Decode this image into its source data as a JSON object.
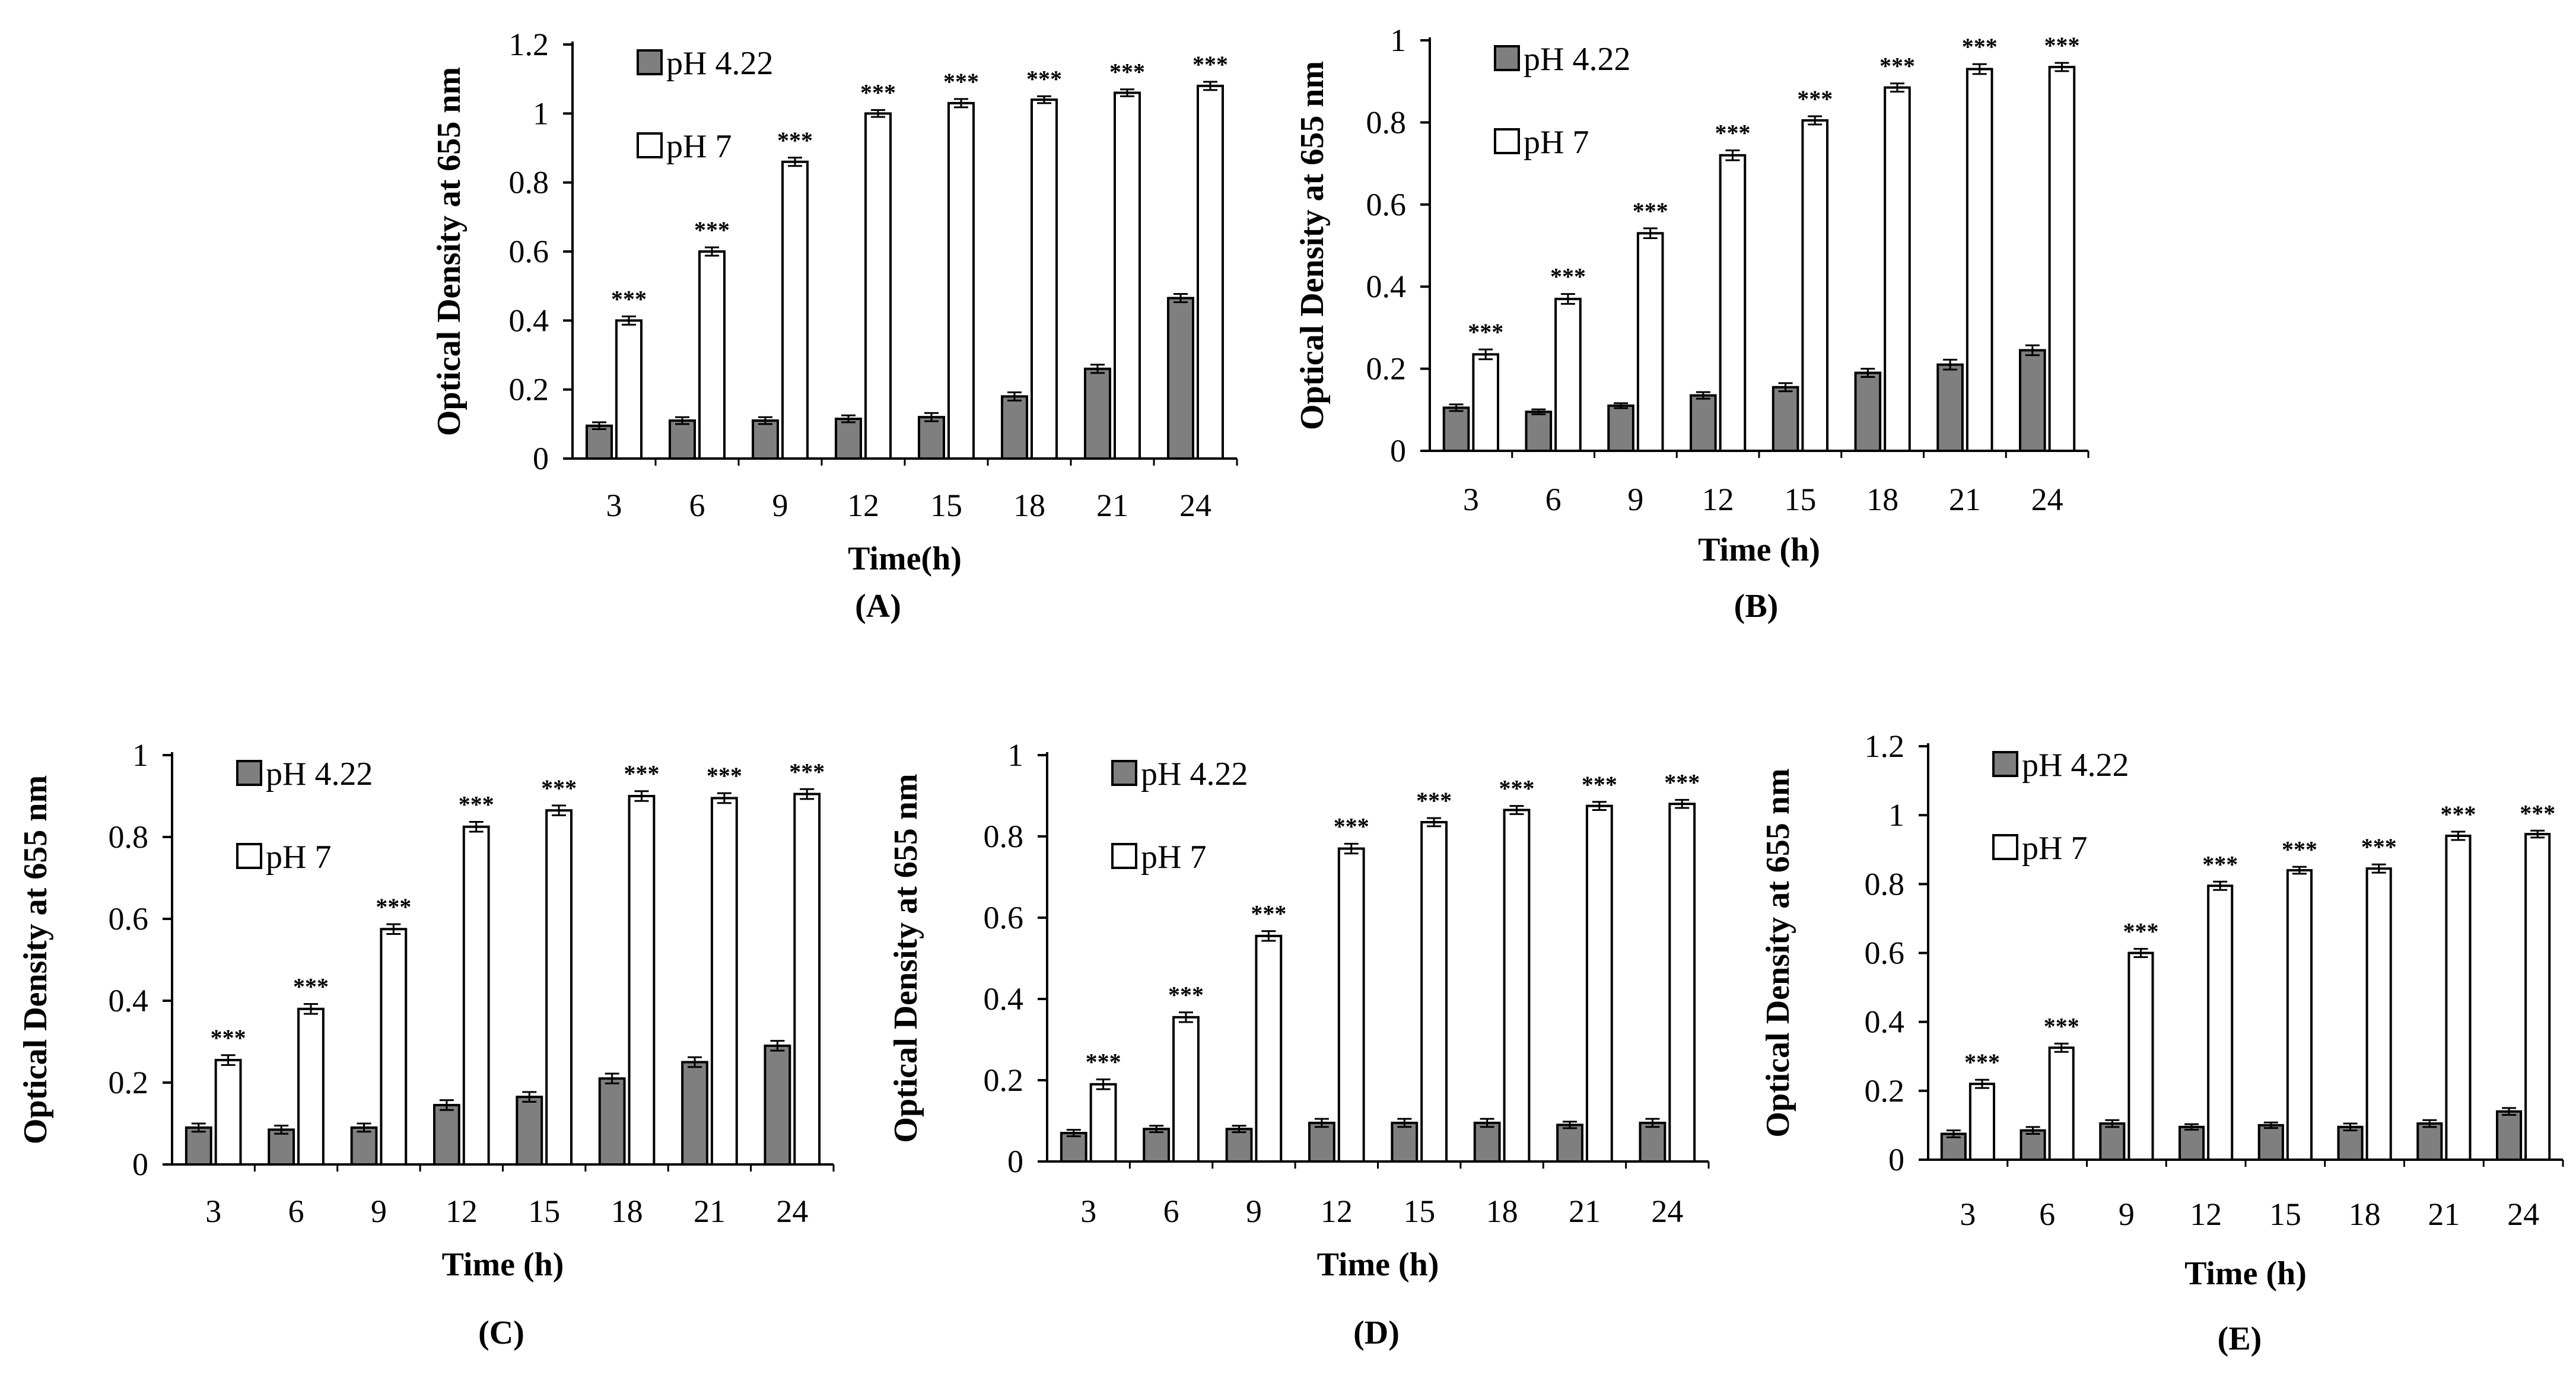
{
  "figure_title": "",
  "chart_data": [
    {
      "type": "bar",
      "panel_label": "(A)",
      "title": "",
      "xlabel": "Time(h)",
      "ylabel": "Optical Density at 655 nm",
      "ylim": [
        0,
        1.2
      ],
      "yticks": [
        "0",
        "0.2",
        "0.4",
        "0.6",
        "0.8",
        "1",
        "1.2"
      ],
      "categories": [
        "3",
        "6",
        "9",
        "12",
        "15",
        "18",
        "21",
        "24"
      ],
      "legend_position": "top-left",
      "series": [
        {
          "name": "pH 4.22",
          "color": "#7f7f7f",
          "values": [
            0.095,
            0.11,
            0.11,
            0.115,
            0.12,
            0.18,
            0.26,
            0.465
          ],
          "errors": [
            0.01,
            0.01,
            0.01,
            0.01,
            0.012,
            0.012,
            0.012,
            0.012
          ]
        },
        {
          "name": "pH 7",
          "color": "#ffffff",
          "values": [
            0.4,
            0.6,
            0.86,
            1.0,
            1.03,
            1.04,
            1.06,
            1.08
          ],
          "errors": [
            0.012,
            0.012,
            0.012,
            0.01,
            0.012,
            0.01,
            0.01,
            0.012
          ],
          "annotations": [
            "***",
            "***",
            "***",
            "***",
            "***",
            "***",
            "***",
            "***"
          ]
        }
      ]
    },
    {
      "type": "bar",
      "panel_label": "(B)",
      "title": "",
      "xlabel": "Time (h)",
      "ylabel": "Optical Density at 655 nm",
      "ylim": [
        0,
        1
      ],
      "yticks": [
        "0",
        "0.2",
        "0.4",
        "0.6",
        "0.8",
        "1"
      ],
      "categories": [
        "3",
        "6",
        "9",
        "12",
        "15",
        "18",
        "21",
        "24"
      ],
      "legend_position": "top-left",
      "series": [
        {
          "name": "pH 4.22",
          "color": "#7f7f7f",
          "values": [
            0.105,
            0.095,
            0.11,
            0.135,
            0.155,
            0.19,
            0.21,
            0.245
          ],
          "errors": [
            0.008,
            0.006,
            0.006,
            0.008,
            0.01,
            0.01,
            0.012,
            0.012
          ]
        },
        {
          "name": "pH 7",
          "color": "#ffffff",
          "values": [
            0.235,
            0.37,
            0.53,
            0.72,
            0.805,
            0.885,
            0.93,
            0.935
          ],
          "errors": [
            0.012,
            0.012,
            0.012,
            0.012,
            0.01,
            0.01,
            0.012,
            0.01
          ],
          "annotations": [
            "***",
            "***",
            "***",
            "***",
            "***",
            "***",
            "***",
            "***"
          ]
        }
      ]
    },
    {
      "type": "bar",
      "panel_label": "(C)",
      "title": "",
      "xlabel": "Time (h)",
      "ylabel": "Optical Density at 655 nm",
      "ylim": [
        0,
        1
      ],
      "yticks": [
        "0",
        "0.2",
        "0.4",
        "0.6",
        "0.8",
        "1"
      ],
      "categories": [
        "3",
        "6",
        "9",
        "12",
        "15",
        "18",
        "21",
        "24"
      ],
      "legend_position": "top-left",
      "series": [
        {
          "name": "pH 4.22",
          "color": "#7f7f7f",
          "values": [
            0.09,
            0.085,
            0.09,
            0.145,
            0.165,
            0.21,
            0.25,
            0.29
          ],
          "errors": [
            0.01,
            0.01,
            0.01,
            0.012,
            0.012,
            0.012,
            0.012,
            0.012
          ]
        },
        {
          "name": "pH 7",
          "color": "#ffffff",
          "values": [
            0.255,
            0.38,
            0.575,
            0.825,
            0.865,
            0.9,
            0.895,
            0.905
          ],
          "errors": [
            0.012,
            0.012,
            0.012,
            0.012,
            0.012,
            0.012,
            0.012,
            0.012
          ],
          "annotations": [
            "***",
            "***",
            "***",
            "***",
            "***",
            "***",
            "***",
            "***"
          ]
        }
      ]
    },
    {
      "type": "bar",
      "panel_label": "(D)",
      "title": "",
      "xlabel": "Time (h)",
      "ylabel": "Optical Density at 655 nm",
      "ylim": [
        0,
        1
      ],
      "yticks": [
        "0",
        "0.2",
        "0.4",
        "0.6",
        "0.8",
        "1"
      ],
      "categories": [
        "3",
        "6",
        "9",
        "12",
        "15",
        "18",
        "21",
        "24"
      ],
      "legend_position": "top-left",
      "series": [
        {
          "name": "pH 4.22",
          "color": "#7f7f7f",
          "values": [
            0.07,
            0.08,
            0.08,
            0.095,
            0.095,
            0.095,
            0.09,
            0.095
          ],
          "errors": [
            0.008,
            0.008,
            0.008,
            0.01,
            0.01,
            0.01,
            0.008,
            0.01
          ]
        },
        {
          "name": "pH 7",
          "color": "#ffffff",
          "values": [
            0.19,
            0.355,
            0.555,
            0.77,
            0.835,
            0.865,
            0.875,
            0.88
          ],
          "errors": [
            0.012,
            0.012,
            0.012,
            0.012,
            0.01,
            0.01,
            0.01,
            0.01
          ],
          "annotations": [
            "***",
            "***",
            "***",
            "***",
            "***",
            "***",
            "***",
            "***"
          ]
        }
      ]
    },
    {
      "type": "bar",
      "panel_label": "(E)",
      "title": "",
      "xlabel": "Time (h)",
      "ylabel": "Optical Density at 655 nm",
      "ylim": [
        0,
        1.2
      ],
      "yticks": [
        "0",
        "0.2",
        "0.4",
        "0.6",
        "0.8",
        "1",
        "1.2"
      ],
      "categories": [
        "3",
        "6",
        "9",
        "12",
        "15",
        "18",
        "21",
        "24"
      ],
      "legend_position": "top-left",
      "series": [
        {
          "name": "pH 4.22",
          "color": "#7f7f7f",
          "values": [
            0.075,
            0.085,
            0.105,
            0.095,
            0.1,
            0.095,
            0.105,
            0.14
          ],
          "errors": [
            0.01,
            0.01,
            0.01,
            0.008,
            0.008,
            0.01,
            0.01,
            0.01
          ]
        },
        {
          "name": "pH 7",
          "color": "#ffffff",
          "values": [
            0.22,
            0.325,
            0.6,
            0.795,
            0.84,
            0.845,
            0.94,
            0.945
          ],
          "errors": [
            0.012,
            0.012,
            0.012,
            0.012,
            0.01,
            0.012,
            0.012,
            0.01
          ],
          "annotations": [
            "***",
            "***",
            "***",
            "***",
            "***",
            "***",
            "***",
            "***"
          ]
        }
      ]
    }
  ]
}
